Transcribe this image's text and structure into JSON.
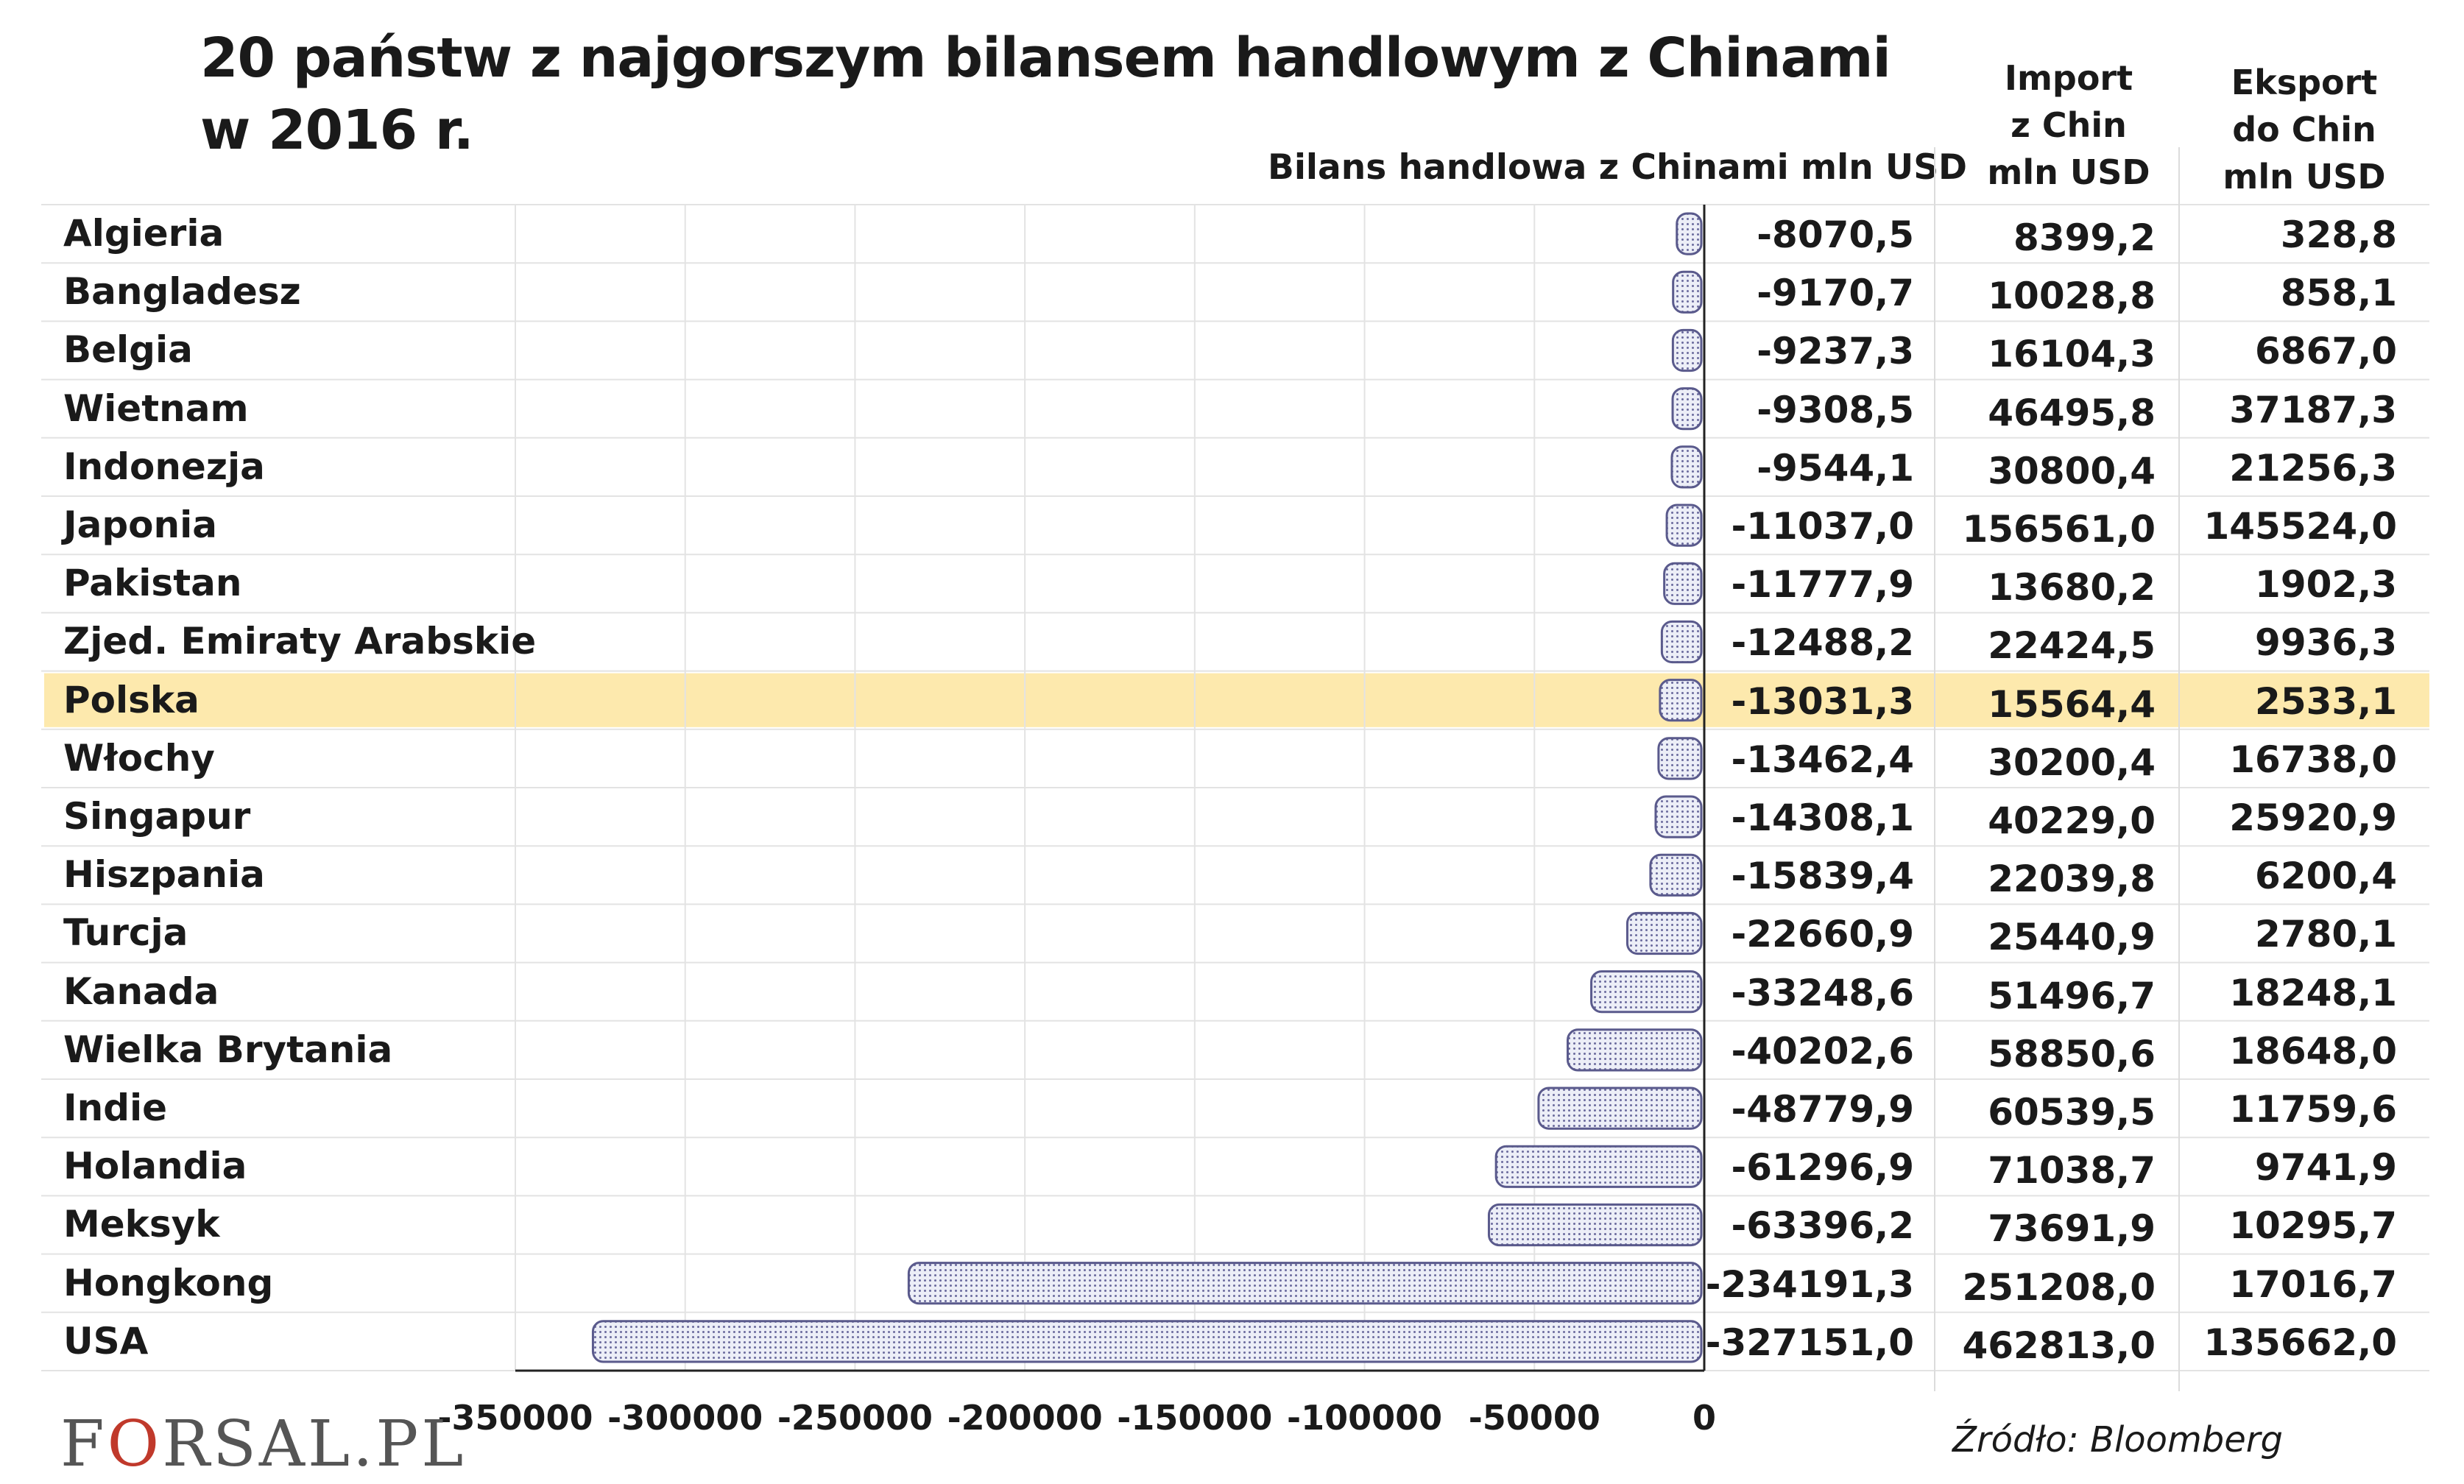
{
  "title_line1": "20 państw z najgorszym bilansem handlowym z Chinami",
  "title_line2": "w 2016 r.",
  "columns": {
    "balance": "Bilans handlowa z Chinami mln USD",
    "import": "Import\nz Chin\nmln USD",
    "export": "Eksport\ndo Chin\nmln USD"
  },
  "rows": [
    {
      "country": "Algieria",
      "balance": "-8070,5",
      "import": "8399,2",
      "export": "328,8"
    },
    {
      "country": "Bangladesz",
      "balance": "-9170,7",
      "import": "10028,8",
      "export": "858,1"
    },
    {
      "country": "Belgia",
      "balance": "-9237,3",
      "import": "16104,3",
      "export": "6867,0"
    },
    {
      "country": "Wietnam",
      "balance": "-9308,5",
      "import": "46495,8",
      "export": "37187,3"
    },
    {
      "country": "Indonezja",
      "balance": "-9544,1",
      "import": "30800,4",
      "export": "21256,3"
    },
    {
      "country": "Japonia",
      "balance": "-11037,0",
      "import": "156561,0",
      "export": "145524,0"
    },
    {
      "country": "Pakistan",
      "balance": "-11777,9",
      "import": "13680,2",
      "export": "1902,3"
    },
    {
      "country": "Zjed. Emiraty Arabskie",
      "balance": "-12488,2",
      "import": "22424,5",
      "export": "9936,3"
    },
    {
      "country": "Polska",
      "balance": "-13031,3",
      "import": "15564,4",
      "export": "2533,1",
      "highlight": true
    },
    {
      "country": "Włochy",
      "balance": "-13462,4",
      "import": "30200,4",
      "export": "16738,0"
    },
    {
      "country": "Singapur",
      "balance": "-14308,1",
      "import": "40229,0",
      "export": "25920,9"
    },
    {
      "country": "Hiszpania",
      "balance": "-15839,4",
      "import": "22039,8",
      "export": "6200,4"
    },
    {
      "country": "Turcja",
      "balance": "-22660,9",
      "import": "25440,9",
      "export": "2780,1"
    },
    {
      "country": "Kanada",
      "balance": "-33248,6",
      "import": "51496,7",
      "export": "18248,1"
    },
    {
      "country": "Wielka Brytania",
      "balance": "-40202,6",
      "import": "58850,6",
      "export": "18648,0"
    },
    {
      "country": "Indie",
      "balance": "-48779,9",
      "import": "60539,5",
      "export": "11759,6"
    },
    {
      "country": "Holandia",
      "balance": "-61296,9",
      "import": "71038,7",
      "export": "9741,9"
    },
    {
      "country": "Meksyk",
      "balance": "-63396,2",
      "import": "73691,9",
      "export": "10295,7"
    },
    {
      "country": "Hongkong",
      "balance": "-234191,3",
      "import": "251208,0",
      "export": "17016,7"
    },
    {
      "country": "USA",
      "balance": "-327151,0",
      "import": "462813,0",
      "export": "135662,0"
    }
  ],
  "chart_data": {
    "type": "bar",
    "orientation": "horizontal",
    "categories": [
      "Algieria",
      "Bangladesz",
      "Belgia",
      "Wietnam",
      "Indonezja",
      "Japonia",
      "Pakistan",
      "Zjed. Emiraty Arabskie",
      "Polska",
      "Włochy",
      "Singapur",
      "Hiszpania",
      "Turcja",
      "Kanada",
      "Wielka Brytania",
      "Indie",
      "Holandia",
      "Meksyk",
      "Hongkong",
      "USA"
    ],
    "values": [
      -8070.5,
      -9170.7,
      -9237.3,
      -9308.5,
      -9544.1,
      -11037.0,
      -11777.9,
      -12488.2,
      -13031.3,
      -13462.4,
      -14308.1,
      -15839.4,
      -22660.9,
      -33248.6,
      -40202.6,
      -48779.9,
      -61296.9,
      -63396.2,
      -234191.3,
      -327151.0
    ],
    "xlim": [
      -350000,
      0
    ],
    "xticks": [
      "-350000",
      "-300000",
      "-250000",
      "-200000",
      "-150000",
      "-100000",
      "-50000",
      "0"
    ],
    "xtick_values": [
      -350000,
      -300000,
      -250000,
      -200000,
      -150000,
      -100000,
      -50000,
      0
    ],
    "grid": true,
    "highlight_category": "Polska",
    "colors": {
      "bar_fill": "#e4e6f2",
      "bar_stroke": "#5a5a8c",
      "highlight": "#fde9ad",
      "grid": "#dddddd"
    }
  },
  "footer": {
    "source": "Źródło: Bloomberg",
    "logo_f": "F",
    "logo_o": "O",
    "logo_rest": "RSAL.PL"
  }
}
